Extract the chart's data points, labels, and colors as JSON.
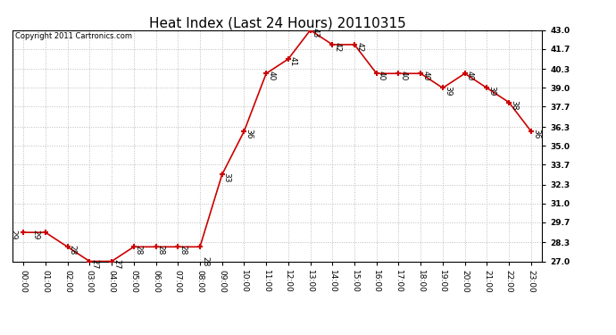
{
  "title": "Heat Index (Last 24 Hours) 20110315",
  "copyright_text": "Copyright 2011 Cartronics.com",
  "x_labels": [
    "00:00",
    "01:00",
    "02:00",
    "03:00",
    "04:00",
    "05:00",
    "06:00",
    "07:00",
    "08:00",
    "09:00",
    "10:00",
    "11:00",
    "12:00",
    "13:00",
    "14:00",
    "15:00",
    "16:00",
    "17:00",
    "18:00",
    "19:00",
    "20:00",
    "21:00",
    "22:00",
    "23:00"
  ],
  "y_values": [
    29,
    29,
    28,
    27,
    27,
    28,
    28,
    28,
    28,
    33,
    36,
    40,
    41,
    43,
    42,
    42,
    40,
    40,
    40,
    39,
    40,
    39,
    38,
    36
  ],
  "ylim_min": 27.0,
  "ylim_max": 43.0,
  "y_ticks": [
    27.0,
    28.3,
    29.7,
    31.0,
    32.3,
    33.7,
    35.0,
    36.3,
    37.7,
    39.0,
    40.3,
    41.7,
    43.0
  ],
  "line_color": "#cc0000",
  "marker_color": "#cc0000",
  "background_color": "#ffffff",
  "grid_color": "#bbbbbb",
  "title_fontsize": 11,
  "label_fontsize": 6.5,
  "annotation_fontsize": 6.5,
  "copyright_fontsize": 6
}
